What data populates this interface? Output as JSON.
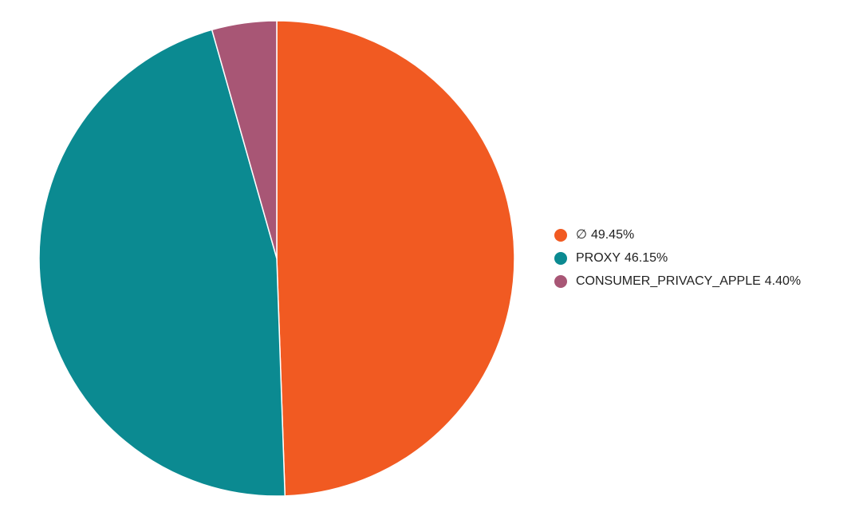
{
  "chart_data": {
    "type": "pie",
    "categories": [
      "∅",
      "PROXY",
      "CONSUMER_PRIVACY_APPLE"
    ],
    "values": [
      49.45,
      46.15,
      4.4
    ],
    "value_labels": [
      "49.45%",
      "46.15%",
      "4.40%"
    ],
    "colors": [
      "#f15a22",
      "#0b8a91",
      "#a85675"
    ],
    "legend": "right"
  }
}
